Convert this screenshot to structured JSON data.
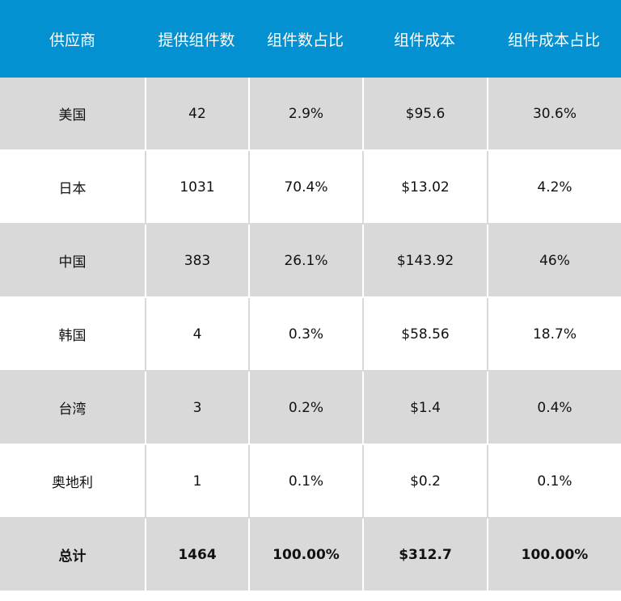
{
  "table": {
    "headers": [
      "供应商",
      "提供组件数",
      "组件数占比",
      "组件成本",
      "组件成本占比"
    ],
    "rows": [
      [
        "美国",
        "42",
        "2.9%",
        "$95.6",
        "30.6%"
      ],
      [
        "日本",
        "1031",
        "70.4%",
        "$13.02",
        "4.2%"
      ],
      [
        "中国",
        "383",
        "26.1%",
        "$143.92",
        "46%"
      ],
      [
        "韩国",
        "4",
        "0.3%",
        "$58.56",
        "18.7%"
      ],
      [
        "台湾",
        "3",
        "0.2%",
        "$1.4",
        "0.4%"
      ],
      [
        "奥地利",
        "1",
        "0.1%",
        "$0.2",
        "0.1%"
      ]
    ],
    "total": [
      "总计",
      "1464",
      "100.00%",
      "$312.7",
      "100.00%"
    ]
  },
  "colors": {
    "header_bg": "#0391d1",
    "header_text": "#ffffff",
    "row_gray": "#d9d9d9",
    "row_white": "#ffffff"
  }
}
